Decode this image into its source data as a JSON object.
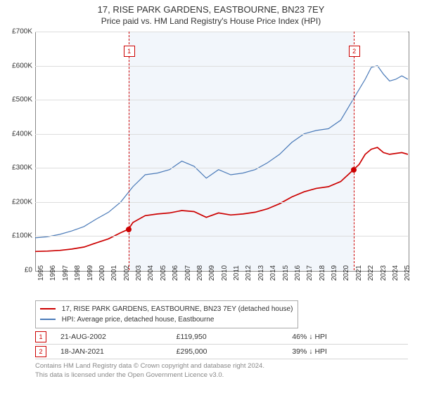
{
  "header": {
    "title": "17, RISE PARK GARDENS, EASTBOURNE, BN23 7EY",
    "subtitle": "Price paid vs. HM Land Registry's House Price Index (HPI)"
  },
  "chart": {
    "type": "line",
    "x_range": [
      1995,
      2025.5
    ],
    "y_range": [
      0,
      700000
    ],
    "ytick_step": 100000,
    "ytick_labels": [
      "£0",
      "£100K",
      "£200K",
      "£300K",
      "£400K",
      "£500K",
      "£600K",
      "£700K"
    ],
    "xtick_step": 1,
    "xtick_labels": [
      "1995",
      "1996",
      "1997",
      "1998",
      "1999",
      "2000",
      "2001",
      "2002",
      "2003",
      "2004",
      "2005",
      "2006",
      "2007",
      "2008",
      "2009",
      "2010",
      "2011",
      "2012",
      "2013",
      "2014",
      "2015",
      "2016",
      "2017",
      "2018",
      "2019",
      "2020",
      "2021",
      "2022",
      "2023",
      "2024",
      "2025"
    ],
    "background": "#ffffff",
    "border_color": "#888888",
    "grid_color": "#dddddd",
    "shade_region": {
      "x_start": 2002.63,
      "x_end": 2021.05,
      "color": "rgba(150,180,220,0.12)"
    },
    "series": [
      {
        "name": "property",
        "label": "17, RISE PARK GARDENS, EASTBOURNE, BN23 7EY (detached house)",
        "color": "#cc0000",
        "width": 1.7,
        "points": [
          [
            1995,
            55000
          ],
          [
            1996,
            56000
          ],
          [
            1997,
            58000
          ],
          [
            1998,
            62000
          ],
          [
            1999,
            68000
          ],
          [
            2000,
            80000
          ],
          [
            2001,
            92000
          ],
          [
            2002,
            110000
          ],
          [
            2002.63,
            119950
          ],
          [
            2003,
            140000
          ],
          [
            2004,
            160000
          ],
          [
            2005,
            165000
          ],
          [
            2006,
            168000
          ],
          [
            2007,
            175000
          ],
          [
            2008,
            172000
          ],
          [
            2009,
            155000
          ],
          [
            2010,
            168000
          ],
          [
            2011,
            162000
          ],
          [
            2012,
            165000
          ],
          [
            2013,
            170000
          ],
          [
            2014,
            180000
          ],
          [
            2015,
            195000
          ],
          [
            2016,
            215000
          ],
          [
            2017,
            230000
          ],
          [
            2018,
            240000
          ],
          [
            2019,
            245000
          ],
          [
            2020,
            260000
          ],
          [
            2021.05,
            295000
          ],
          [
            2021.5,
            310000
          ],
          [
            2022,
            340000
          ],
          [
            2022.5,
            355000
          ],
          [
            2023,
            360000
          ],
          [
            2023.5,
            345000
          ],
          [
            2024,
            340000
          ],
          [
            2025,
            345000
          ],
          [
            2025.5,
            340000
          ]
        ]
      },
      {
        "name": "hpi",
        "label": "HPI: Average price, detached house, Eastbourne",
        "color": "#4a7ab8",
        "width": 1.2,
        "points": [
          [
            1995,
            95000
          ],
          [
            1996,
            98000
          ],
          [
            1997,
            105000
          ],
          [
            1998,
            115000
          ],
          [
            1999,
            128000
          ],
          [
            2000,
            150000
          ],
          [
            2001,
            170000
          ],
          [
            2002,
            200000
          ],
          [
            2003,
            245000
          ],
          [
            2004,
            280000
          ],
          [
            2005,
            285000
          ],
          [
            2006,
            295000
          ],
          [
            2007,
            320000
          ],
          [
            2008,
            305000
          ],
          [
            2009,
            270000
          ],
          [
            2010,
            295000
          ],
          [
            2011,
            280000
          ],
          [
            2012,
            285000
          ],
          [
            2013,
            295000
          ],
          [
            2014,
            315000
          ],
          [
            2015,
            340000
          ],
          [
            2016,
            375000
          ],
          [
            2017,
            400000
          ],
          [
            2018,
            410000
          ],
          [
            2019,
            415000
          ],
          [
            2020,
            440000
          ],
          [
            2021,
            500000
          ],
          [
            2022,
            560000
          ],
          [
            2022.5,
            595000
          ],
          [
            2023,
            600000
          ],
          [
            2023.5,
            575000
          ],
          [
            2024,
            555000
          ],
          [
            2024.5,
            560000
          ],
          [
            2025,
            570000
          ],
          [
            2025.5,
            560000
          ]
        ]
      }
    ],
    "markers": [
      {
        "id": "1",
        "x": 2002.63,
        "y": 119950,
        "label_y": 0.06,
        "dot_color": "#cc0000"
      },
      {
        "id": "2",
        "x": 2021.05,
        "y": 295000,
        "label_y": 0.06,
        "dot_color": "#cc0000"
      }
    ]
  },
  "legend": {
    "items": [
      {
        "color": "#cc0000",
        "label": "17, RISE PARK GARDENS, EASTBOURNE, BN23 7EY (detached house)"
      },
      {
        "color": "#4a7ab8",
        "label": "HPI: Average price, detached house, Eastbourne"
      }
    ]
  },
  "transactions": [
    {
      "id": "1",
      "date": "21-AUG-2002",
      "price": "£119,950",
      "vs_hpi": "46% ↓ HPI"
    },
    {
      "id": "2",
      "date": "18-JAN-2021",
      "price": "£295,000",
      "vs_hpi": "39% ↓ HPI"
    }
  ],
  "footer": {
    "line1": "Contains HM Land Registry data © Crown copyright and database right 2024.",
    "line2": "This data is licensed under the Open Government Licence v3.0."
  }
}
